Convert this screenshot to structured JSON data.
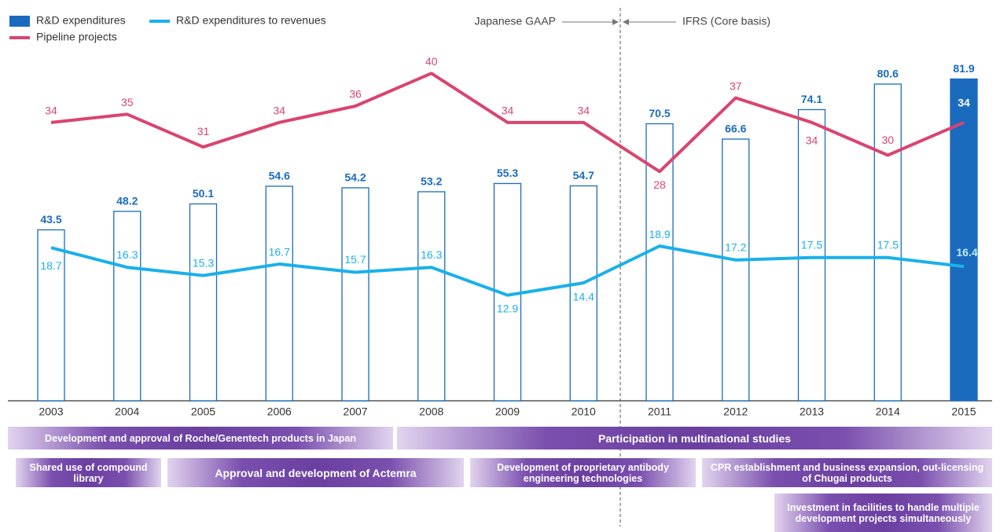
{
  "chart_data": {
    "type": "bar",
    "categories": [
      "2003",
      "2004",
      "2005",
      "2006",
      "2007",
      "2008",
      "2009",
      "2010",
      "2011",
      "2012",
      "2013",
      "2014",
      "2015"
    ],
    "series": [
      {
        "name": "R&D expenditures",
        "type": "bar",
        "color": "#1a6bbd",
        "fills": [
          "#ffffff",
          "#ffffff",
          "#ffffff",
          "#ffffff",
          "#ffffff",
          "#ffffff",
          "#ffffff",
          "#ffffff",
          "#ffffff",
          "#ffffff",
          "#ffffff",
          "#ffffff",
          "#1a6bbd"
        ],
        "values": [
          43.5,
          48.2,
          50.1,
          54.6,
          54.2,
          53.2,
          55.3,
          54.7,
          70.5,
          66.6,
          74.1,
          80.6,
          81.9
        ]
      },
      {
        "name": "R&D expenditures to revenues",
        "type": "line",
        "axis": "y2",
        "color": "#1ab0ea",
        "values": [
          18.7,
          16.3,
          15.3,
          16.7,
          15.7,
          16.3,
          12.9,
          14.4,
          18.9,
          17.2,
          17.5,
          17.5,
          16.4
        ]
      },
      {
        "name": "Pipeline projects",
        "type": "line",
        "axis": "y2",
        "color": "#d9456f",
        "values": [
          34,
          35,
          31,
          34,
          36,
          40,
          34,
          34,
          28,
          37,
          34,
          30,
          34
        ]
      }
    ],
    "ylim": [
      0,
      100
    ],
    "y2lim": [
      0,
      48
    ],
    "annotations": [
      "Japanese GAAP",
      "IFRS (Core basis)"
    ]
  },
  "timeline": [
    "Development and approval of Roche/Genentech products in Japan",
    "Participation in multinational studies",
    "Shared use of compound library",
    "Approval and development of Actemra",
    "Development of proprietary antibody engineering technologies",
    "CPR establishment and business expansion, out-licensing of Chugai products",
    "Investment in facilities to handle multiple development projects simultaneously"
  ]
}
